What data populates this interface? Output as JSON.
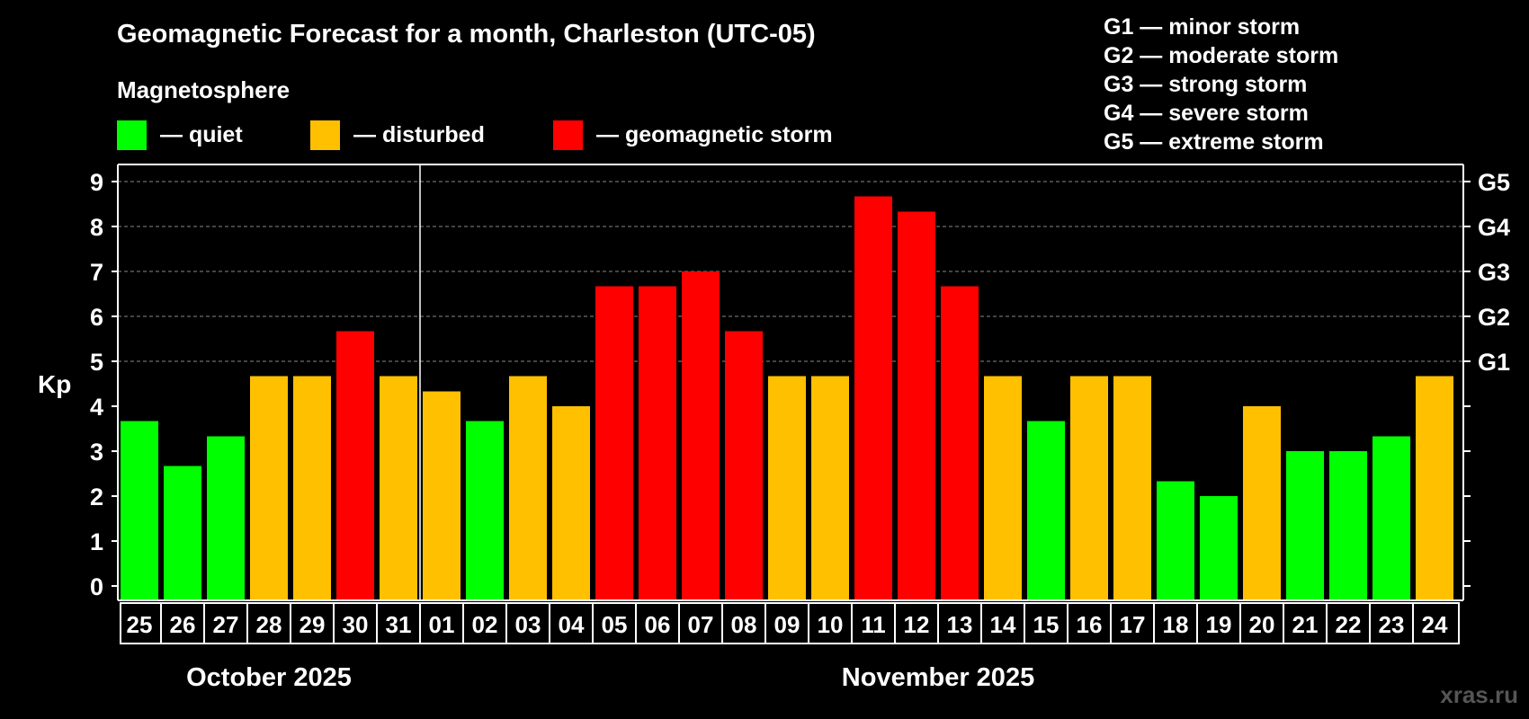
{
  "chart_data": {
    "type": "bar",
    "title": "Geomagnetic Forecast for a month, Charleston (UTC-05)",
    "ylabel": "Kp",
    "ylim": [
      0,
      9
    ],
    "yticks": [
      "0",
      "1",
      "2",
      "3",
      "4",
      "5",
      "6",
      "7",
      "8",
      "9"
    ],
    "right_ticks": [
      {
        "value": 5,
        "label": "G1"
      },
      {
        "value": 6,
        "label": "G2"
      },
      {
        "value": 7,
        "label": "G3"
      },
      {
        "value": 8,
        "label": "G4"
      },
      {
        "value": 9,
        "label": "G5"
      }
    ],
    "legend": {
      "title": "Magnetosphere",
      "items": [
        {
          "label": "— quiet",
          "color": "#00ff00"
        },
        {
          "label": "— disturbed",
          "color": "#ffc000"
        },
        {
          "label": "— geomagnetic storm",
          "color": "#ff0000"
        }
      ]
    },
    "storm_levels": [
      "G1 — minor storm",
      "G2 — moderate storm",
      "G3 — strong storm",
      "G4 — severe storm",
      "G5 — extreme storm"
    ],
    "months": [
      {
        "label": "October 2025",
        "start": 0,
        "count": 7
      },
      {
        "label": "November 2025",
        "start": 7,
        "count": 24
      }
    ],
    "categories": [
      "25",
      "26",
      "27",
      "28",
      "29",
      "30",
      "31",
      "01",
      "02",
      "03",
      "04",
      "05",
      "06",
      "07",
      "08",
      "09",
      "10",
      "11",
      "12",
      "13",
      "14",
      "15",
      "16",
      "17",
      "18",
      "19",
      "20",
      "21",
      "22",
      "23",
      "24"
    ],
    "values": [
      3.67,
      2.67,
      3.33,
      4.67,
      4.67,
      5.67,
      4.67,
      4.33,
      3.67,
      4.67,
      4.0,
      6.67,
      6.67,
      7.0,
      5.67,
      4.67,
      4.67,
      8.67,
      8.33,
      6.67,
      4.67,
      3.67,
      4.67,
      4.67,
      2.33,
      2.0,
      4.0,
      3.0,
      3.0,
      3.33,
      4.67
    ],
    "levels": [
      "quiet",
      "quiet",
      "quiet",
      "disturbed",
      "disturbed",
      "storm",
      "disturbed",
      "disturbed",
      "quiet",
      "disturbed",
      "disturbed",
      "storm",
      "storm",
      "storm",
      "storm",
      "disturbed",
      "disturbed",
      "storm",
      "storm",
      "storm",
      "disturbed",
      "quiet",
      "disturbed",
      "disturbed",
      "quiet",
      "quiet",
      "disturbed",
      "quiet",
      "quiet",
      "quiet",
      "disturbed"
    ],
    "level_colors": {
      "quiet": "#00ff00",
      "disturbed": "#ffc000",
      "storm": "#ff0000"
    }
  },
  "watermark": "xras.ru"
}
